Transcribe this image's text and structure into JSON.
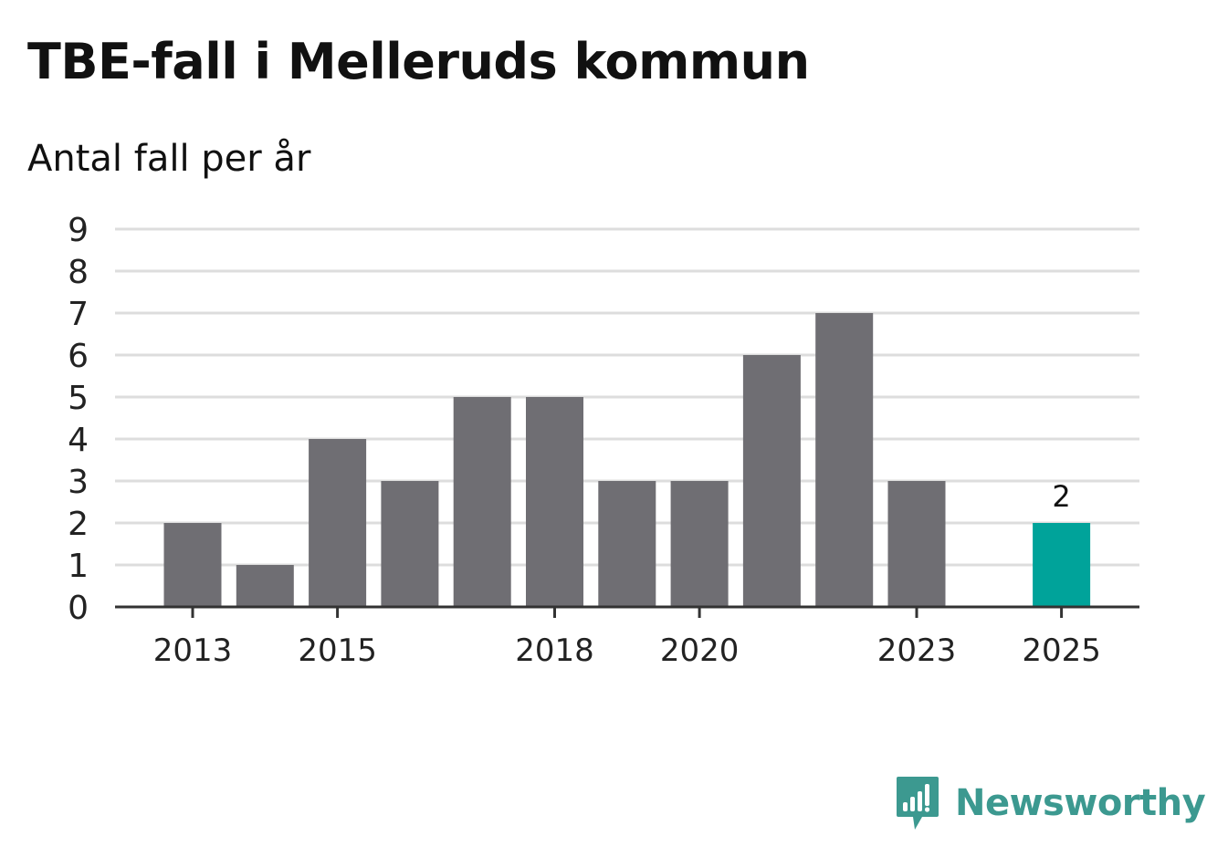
{
  "chart_data": {
    "type": "bar",
    "title": "TBE-fall i Melleruds kommun",
    "subtitle": "Antal fall per år",
    "x": [
      2013,
      2014,
      2015,
      2016,
      2017,
      2018,
      2019,
      2020,
      2021,
      2022,
      2023,
      2024,
      2025
    ],
    "values": [
      2,
      1,
      4,
      3,
      5,
      5,
      3,
      3,
      6,
      7,
      3,
      null,
      2
    ],
    "x_tick_labels": [
      "2013",
      "2015",
      "2018",
      "2020",
      "2023",
      "2025"
    ],
    "y_ticks": [
      0,
      1,
      2,
      3,
      4,
      5,
      6,
      7,
      8,
      9
    ],
    "ylim": [
      0,
      9
    ],
    "xlabel": "",
    "ylabel": "",
    "grid": true,
    "highlight": {
      "x": 2025,
      "label": "2"
    },
    "colors": {
      "bar": "#6f6e73",
      "highlight": "#00a39a",
      "grid": "#dddddd",
      "axis": "#333333"
    }
  },
  "branding": {
    "name": "Newsworthy",
    "color": "#3c9990"
  }
}
